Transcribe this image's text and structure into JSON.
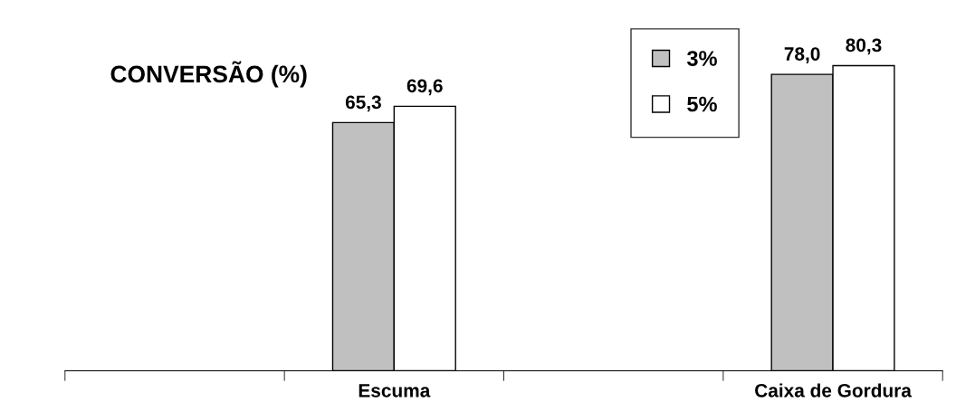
{
  "chart_data": {
    "type": "bar",
    "title": "CONVERSÃO (%)",
    "categories": [
      null,
      "Escuma",
      null,
      "Caixa de Gordura"
    ],
    "series": [
      {
        "name": "3%",
        "color": "#c0c0c0",
        "values": [
          null,
          65.3,
          null,
          78.0
        ],
        "value_labels": [
          null,
          "65,3",
          null,
          "78,0"
        ]
      },
      {
        "name": "5%",
        "color": "#ffffff",
        "values": [
          null,
          69.6,
          null,
          80.3
        ],
        "value_labels": [
          null,
          "69,6",
          null,
          "80,3"
        ]
      }
    ],
    "tick_labels": "x",
    "legend": "top right",
    "grid": false
  }
}
